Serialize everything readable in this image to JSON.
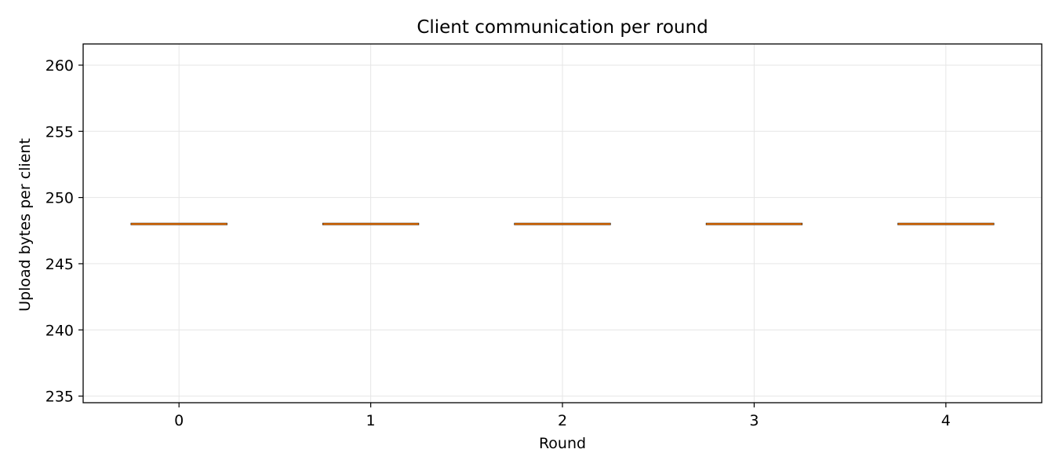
{
  "chart_data": {
    "type": "box",
    "title": "Client communication per round",
    "xlabel": "Round",
    "ylabel": "Upload bytes per client",
    "categories": [
      "0",
      "1",
      "2",
      "3",
      "4"
    ],
    "values": [
      248,
      248,
      248,
      248,
      248
    ],
    "ylim": [
      234.5,
      261.6
    ],
    "yticks": [
      235,
      240,
      245,
      250,
      255,
      260
    ],
    "grid": true,
    "colors": {
      "median": "#ff7f0e",
      "box": "#000000",
      "grid": "#e6e6e6",
      "axis": "#000000"
    }
  }
}
